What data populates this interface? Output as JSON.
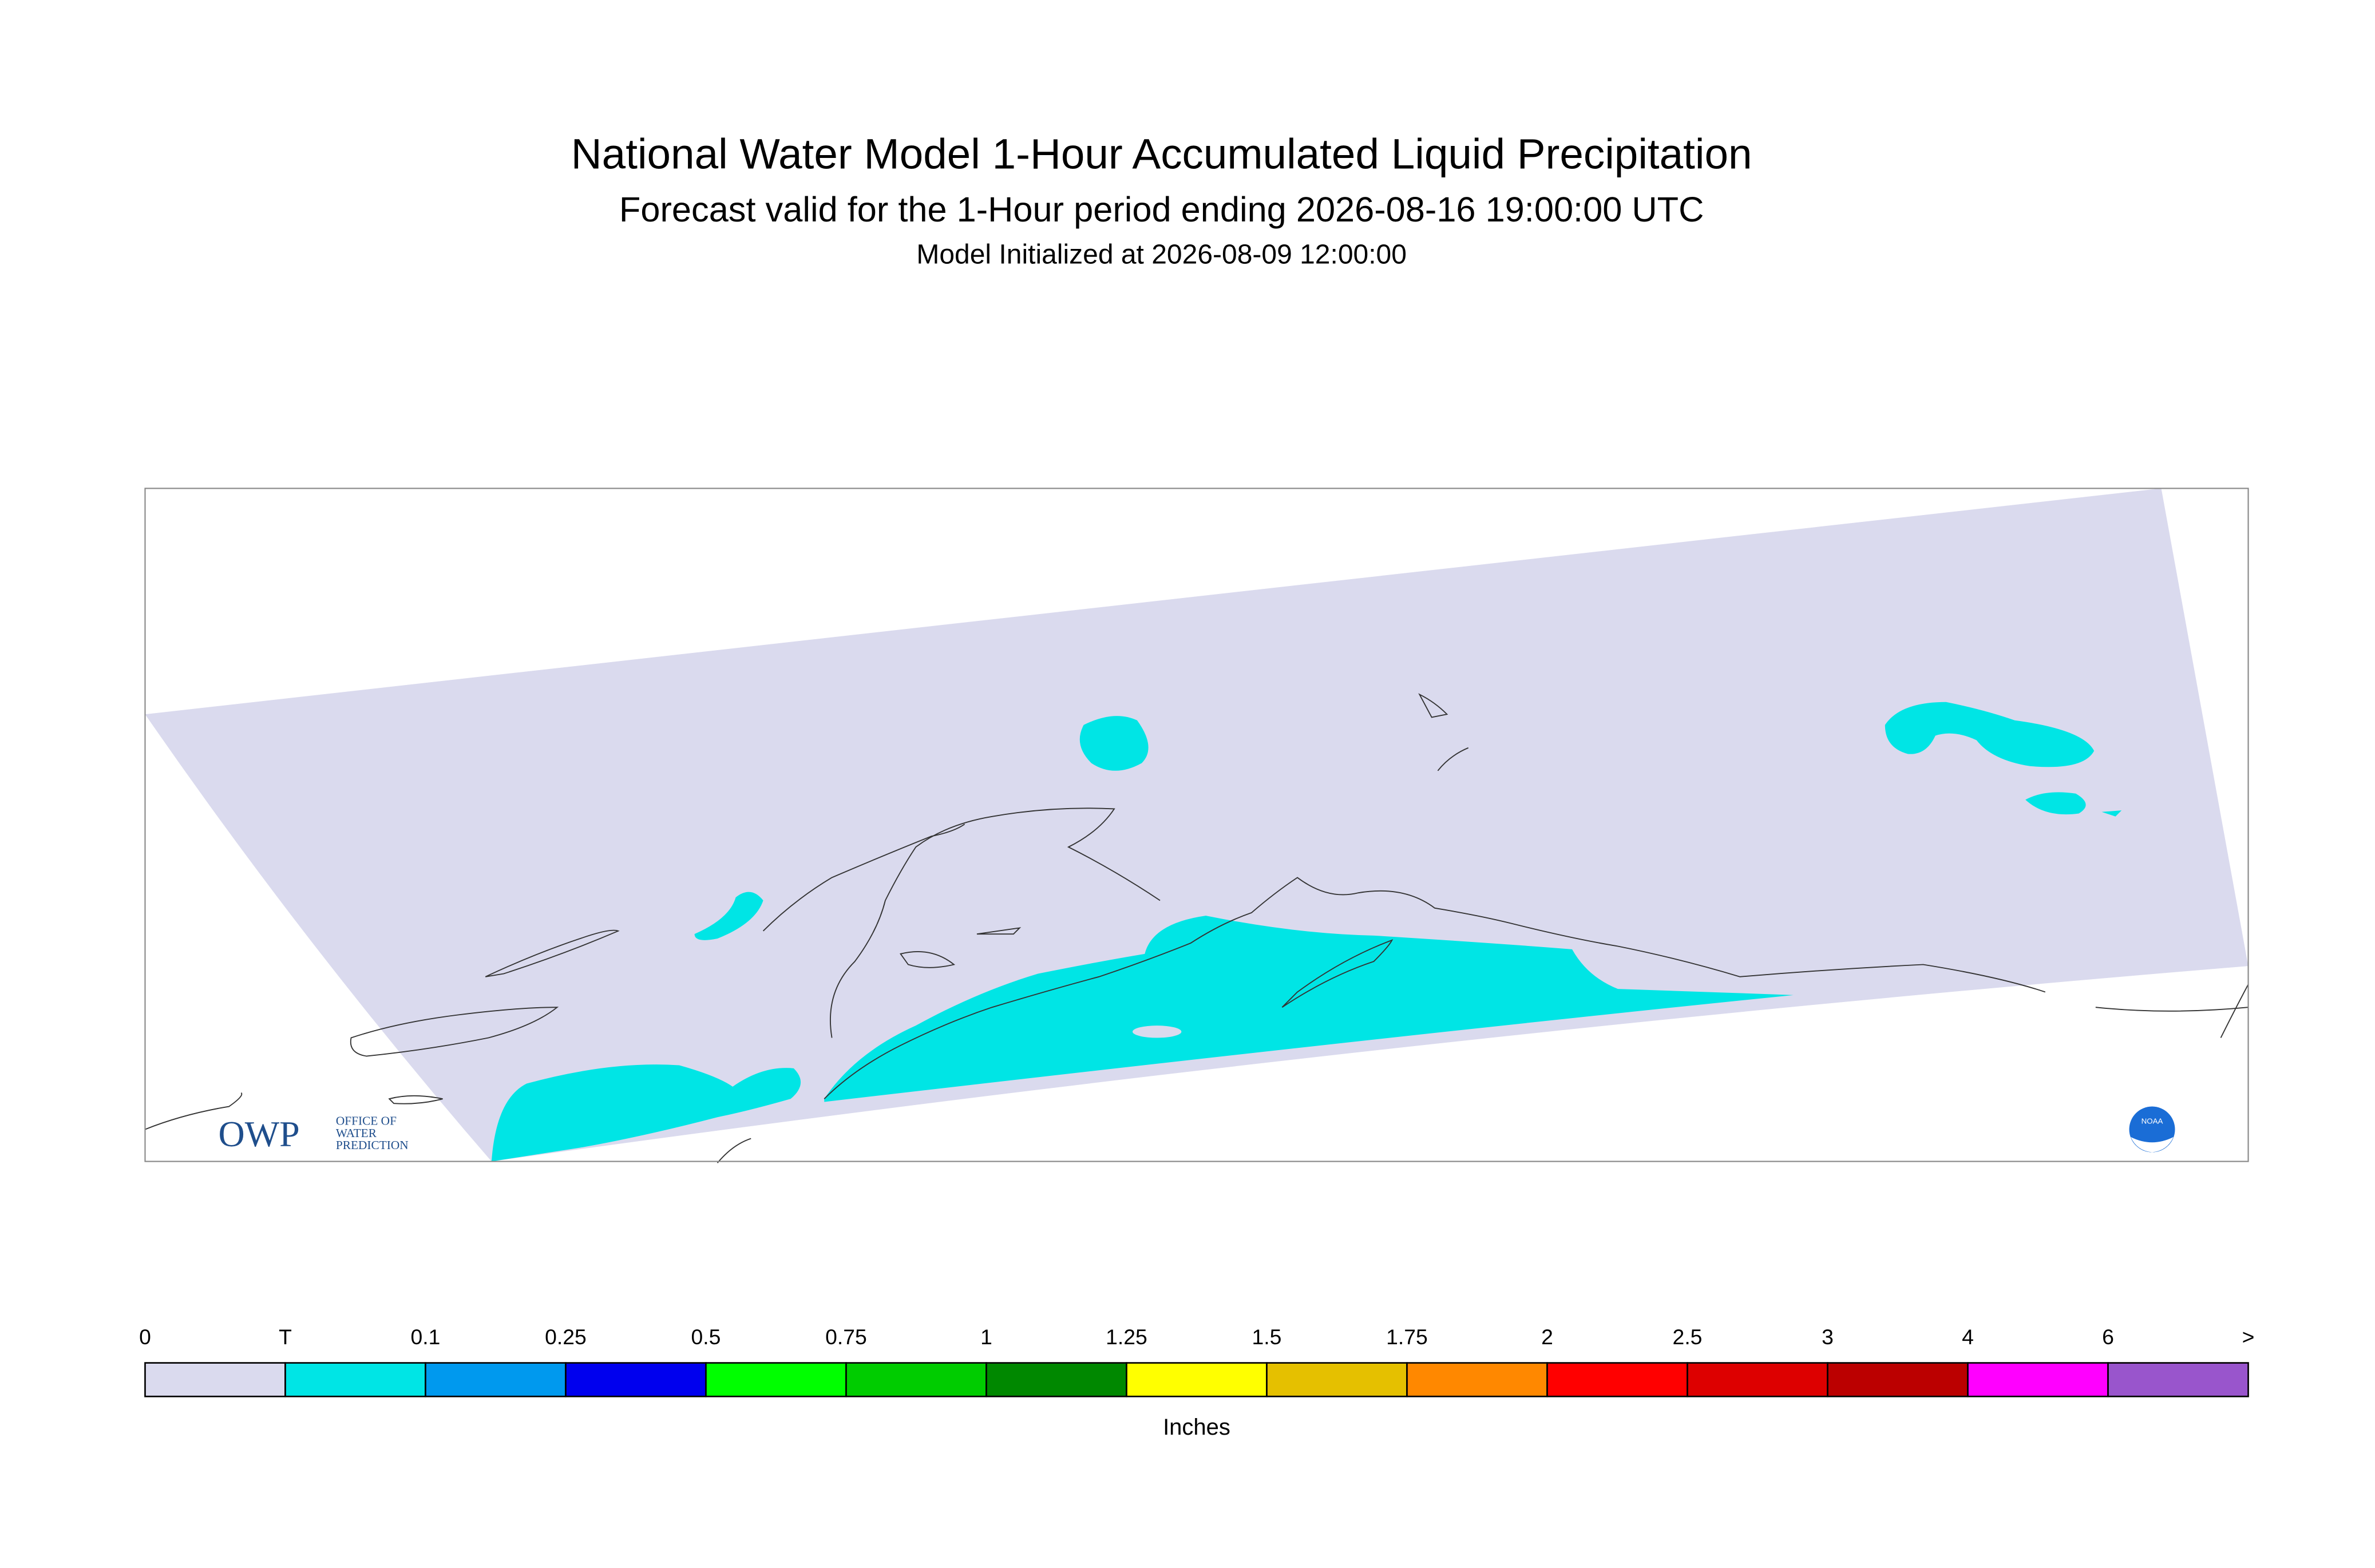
{
  "header": {
    "title": "National Water Model 1-Hour Accumulated Liquid Precipitation",
    "subtitle": "Forecast valid for the 1-Hour period ending 2026-08-16 19:00:00 UTC",
    "initialized": "Model Initialized at 2026-08-09 12:00:00"
  },
  "logos": {
    "owp": "OWP",
    "owp_lines": [
      "OFFICE OF",
      "WATER",
      "PREDICTION"
    ],
    "noaa": "NOAA"
  },
  "legend": {
    "labels": [
      "0",
      "T",
      "0.1",
      "0.25",
      "0.5",
      "0.75",
      "1",
      "1.25",
      "1.5",
      "1.75",
      "2",
      "2.5",
      "3",
      "4",
      "6",
      ">"
    ],
    "colors": [
      "#dadaee",
      "#00e5e5",
      "#0099ee",
      "#0000ee",
      "#00ff00",
      "#00cc00",
      "#008800",
      "#ffff00",
      "#e5c000",
      "#ff8800",
      "#ff0000",
      "#dd0000",
      "#bb0000",
      "#ff00ff",
      "#9955cc"
    ],
    "unit": "Inches"
  }
}
